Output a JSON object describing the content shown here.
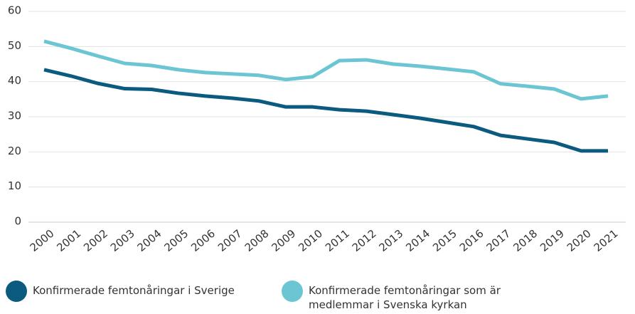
{
  "chart_data": {
    "type": "line",
    "x": [
      2000,
      2001,
      2002,
      2003,
      2004,
      2005,
      2006,
      2007,
      2008,
      2009,
      2010,
      2011,
      2012,
      2013,
      2014,
      2015,
      2016,
      2017,
      2018,
      2019,
      2020,
      2021
    ],
    "series": [
      {
        "name": "Konfirmerade femtonåringar i Sverige",
        "color": "#0b5a80",
        "values": [
          43.4,
          41.6,
          39.5,
          38.0,
          37.8,
          36.7,
          35.9,
          35.3,
          34.5,
          32.8,
          32.8,
          32.0,
          31.6,
          30.6,
          29.6,
          28.4,
          27.2,
          24.7,
          23.7,
          22.7,
          20.3,
          20.3
        ]
      },
      {
        "name": "Konfirmerade femtonåringar som är medlemmar i Svenska kyrkan",
        "color": "#6cc5d2",
        "values": [
          51.5,
          49.5,
          47.3,
          45.2,
          44.6,
          43.4,
          42.6,
          42.2,
          41.8,
          40.6,
          41.4,
          46.0,
          46.2,
          45.0,
          44.4,
          43.6,
          42.8,
          39.4,
          38.7,
          37.9,
          35.1,
          35.9
        ]
      }
    ],
    "ylim": [
      0,
      60
    ],
    "yticks": [
      0,
      10,
      20,
      30,
      40,
      50,
      60
    ],
    "grid": true
  }
}
